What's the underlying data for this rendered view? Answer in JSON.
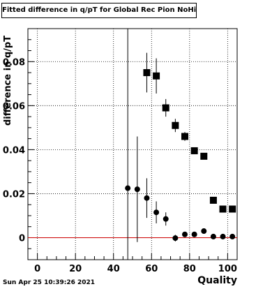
{
  "title": "Fitted difference in q/pT for Global Rec Pion NoHits",
  "timestamp": "Sun Apr 25 10:39:26 2021",
  "chart_data": {
    "type": "scatter",
    "title": "Fitted difference in q/pT for Global Rec Pion NoHits",
    "xlabel": "Quality",
    "ylabel": "difference in q/pT",
    "xlim": [
      -5,
      105
    ],
    "ylim": [
      -0.01,
      0.095
    ],
    "x_ticks": [
      0,
      20,
      40,
      60,
      80,
      100
    ],
    "y_ticks": [
      0,
      0.02,
      0.04,
      0.06,
      0.08
    ],
    "grid": true,
    "vertical_line_x": 47.5,
    "reference_line_y": 0,
    "reference_line_color": "#cc0000",
    "series": [
      {
        "marker": "square",
        "points": [
          {
            "x": 57.5,
            "y": 0.075,
            "err": 0.009
          },
          {
            "x": 62.5,
            "y": 0.0735,
            "err": 0.008
          },
          {
            "x": 67.5,
            "y": 0.059,
            "err": 0.004
          },
          {
            "x": 72.5,
            "y": 0.051,
            "err": 0.003
          },
          {
            "x": 77.5,
            "y": 0.046,
            "err": 0.002
          },
          {
            "x": 82.5,
            "y": 0.0395,
            "err": 0.0015
          },
          {
            "x": 87.5,
            "y": 0.037,
            "err": 0.0012
          },
          {
            "x": 92.5,
            "y": 0.017,
            "err": 0.001
          },
          {
            "x": 97.5,
            "y": 0.013,
            "err": 0.001
          },
          {
            "x": 102.5,
            "y": 0.013,
            "err": 0.001
          }
        ]
      },
      {
        "marker": "circle",
        "points": [
          {
            "x": 47.5,
            "y": 0.0225,
            "err": 0.0
          },
          {
            "x": 52.5,
            "y": 0.022,
            "err": 0.024
          },
          {
            "x": 57.5,
            "y": 0.018,
            "err": 0.009
          },
          {
            "x": 62.5,
            "y": 0.0115,
            "err": 0.005
          },
          {
            "x": 67.5,
            "y": 0.0085,
            "err": 0.003
          },
          {
            "x": 72.5,
            "y": -0.0002,
            "err": 0.0015
          },
          {
            "x": 77.5,
            "y": 0.0015,
            "err": 0.001
          },
          {
            "x": 82.5,
            "y": 0.0015,
            "err": 0.001
          },
          {
            "x": 87.5,
            "y": 0.003,
            "err": 0.0008
          },
          {
            "x": 92.5,
            "y": 0.0005,
            "err": 0.0005
          },
          {
            "x": 97.5,
            "y": 0.0005,
            "err": 0.0005
          },
          {
            "x": 102.5,
            "y": 0.0005,
            "err": 0.0005
          }
        ]
      }
    ]
  }
}
